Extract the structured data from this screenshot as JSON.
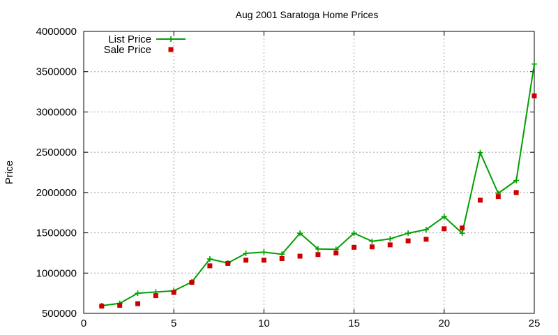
{
  "chart_data": {
    "type": "line",
    "title": "Aug 2001 Saratoga Home Prices",
    "xlabel": "",
    "ylabel": "Price",
    "xlim": [
      0,
      25
    ],
    "ylim": [
      500000,
      4000000
    ],
    "x_ticks": [
      "0",
      "5",
      "10",
      "15",
      "20",
      "25"
    ],
    "y_ticks": [
      "500000",
      "1000000",
      "1500000",
      "2000000",
      "2500000",
      "3000000",
      "3500000",
      "4000000"
    ],
    "grid": true,
    "legend_position": "top-left",
    "series": [
      {
        "name": "List Price",
        "style": "line-with-plus",
        "color": "#00a000",
        "x": [
          1,
          2,
          3,
          4,
          5,
          6,
          7,
          8,
          9,
          10,
          11,
          12,
          13,
          14,
          15,
          16,
          17,
          18,
          19,
          20,
          21,
          22,
          23,
          24,
          25
        ],
        "values": [
          595000,
          625000,
          750000,
          765000,
          780000,
          890000,
          1175000,
          1125000,
          1245000,
          1260000,
          1235000,
          1495000,
          1300000,
          1295000,
          1495000,
          1395000,
          1425000,
          1495000,
          1540000,
          1700000,
          1495000,
          2495000,
          1990000,
          2150000,
          3595000
        ]
      },
      {
        "name": "Sale Price",
        "style": "square-points",
        "color": "#cc0000",
        "x": [
          1,
          2,
          3,
          4,
          5,
          6,
          7,
          8,
          9,
          10,
          11,
          12,
          13,
          14,
          15,
          16,
          17,
          18,
          19,
          20,
          21,
          22,
          23,
          24,
          25
        ],
        "values": [
          590000,
          600000,
          620000,
          720000,
          760000,
          885000,
          1090000,
          1120000,
          1160000,
          1160000,
          1180000,
          1210000,
          1230000,
          1250000,
          1320000,
          1325000,
          1350000,
          1400000,
          1420000,
          1550000,
          1560000,
          1905000,
          1950000,
          2000000,
          3200000
        ]
      }
    ]
  }
}
